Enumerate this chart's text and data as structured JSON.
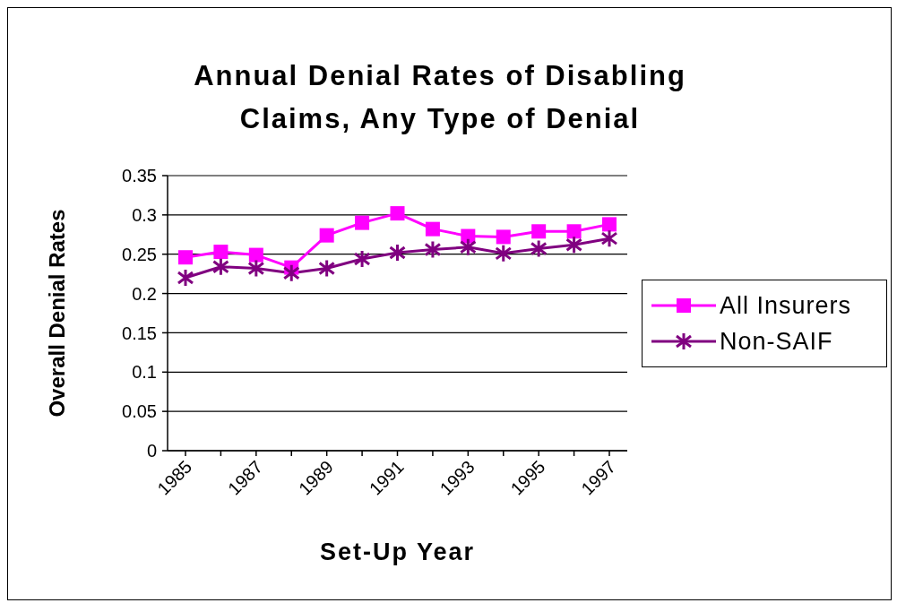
{
  "chart_data": {
    "type": "line",
    "title": "Annual Denial Rates of Disabling Claims, Any Type of Denial",
    "xlabel": "Set-Up Year",
    "ylabel": "Overall Denial Rates",
    "categories": [
      "1985",
      null,
      "1987",
      null,
      "1989",
      null,
      "1991",
      null,
      "1993",
      null,
      "1995",
      null,
      "1997"
    ],
    "series": [
      {
        "name": "All Insurers",
        "color": "#ff00ff",
        "marker": "square",
        "values": [
          0.246,
          0.253,
          0.249,
          0.233,
          0.274,
          0.29,
          0.302,
          0.282,
          0.273,
          0.272,
          0.279,
          0.279,
          0.288
        ]
      },
      {
        "name": "Non-SAIF",
        "color": "#800080",
        "marker": "cross",
        "values": [
          0.22,
          0.234,
          0.232,
          0.226,
          0.232,
          0.244,
          0.252,
          0.256,
          0.259,
          0.251,
          0.257,
          0.262,
          0.27
        ]
      }
    ],
    "ylim": [
      0,
      0.35
    ],
    "yticks": [
      0,
      0.05,
      0.1,
      0.15,
      0.2,
      0.25,
      0.3,
      0.35
    ],
    "grid": "y",
    "legend": "right",
    "line_style": "solid"
  }
}
